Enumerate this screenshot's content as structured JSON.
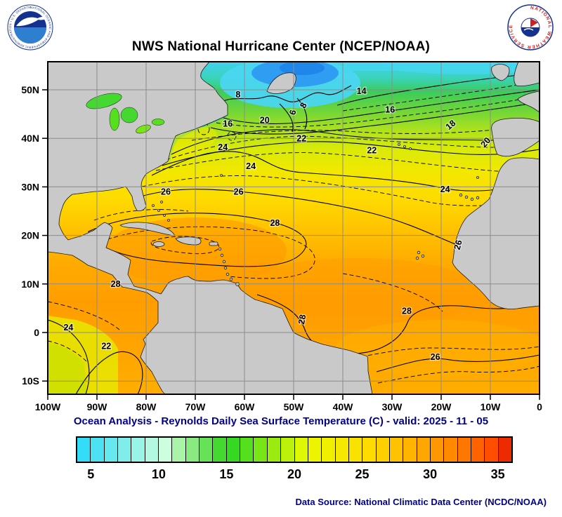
{
  "header": {
    "title": "NWS National Hurricane Center (NCEP/NOAA)",
    "noaa_logo": {
      "ring_text": "NATIONAL OCEANIC AND ATMOSPHERIC ADMINISTRATION • U.S. DEPARTMENT OF COMMERCE"
    },
    "nws_logo": {
      "ring_text": "NATIONAL WEATHER SERVICE"
    }
  },
  "footer": {
    "subtitle": "Ocean Analysis - Reynolds Daily Sea Surface Temperature (C) - valid: 2025 - 11 - 05",
    "data_source": "Data Source: National Climatic Data Center (NCDC/NOAA)"
  },
  "chart_data": {
    "type": "heatmap",
    "title": "NWS National Hurricane Center (NCEP/NOAA)",
    "subtitle": "Ocean Analysis - Reynolds Daily Sea Surface Temperature (C) - valid: 2025 - 11 - 05",
    "variable": "Reynolds Daily Sea Surface Temperature",
    "units": "C",
    "valid_date": "2025 - 11 - 05",
    "region": {
      "lon_west": -100,
      "lon_east": 0,
      "lat_south": -12.7,
      "lat_north": 55.8
    },
    "x_axis": {
      "ticks": [
        {
          "label": "100W",
          "lon": -100
        },
        {
          "label": "90W",
          "lon": -90
        },
        {
          "label": "80W",
          "lon": -80
        },
        {
          "label": "70W",
          "lon": -70
        },
        {
          "label": "60W",
          "lon": -60
        },
        {
          "label": "50W",
          "lon": -50
        },
        {
          "label": "40W",
          "lon": -40
        },
        {
          "label": "30W",
          "lon": -30
        },
        {
          "label": "20W",
          "lon": -20
        },
        {
          "label": "10W",
          "lon": -10
        },
        {
          "label": "0",
          "lon": 0
        }
      ]
    },
    "y_axis": {
      "ticks": [
        {
          "label": "50N",
          "lat": 50
        },
        {
          "label": "40N",
          "lat": 40
        },
        {
          "label": "30N",
          "lat": 30
        },
        {
          "label": "20N",
          "lat": 20
        },
        {
          "label": "10N",
          "lat": 10
        },
        {
          "label": "0",
          "lat": 0
        },
        {
          "label": "10S",
          "lat": -10
        }
      ]
    },
    "grid_lons": [
      -90,
      -80,
      -70,
      -60,
      -50,
      -40,
      -30,
      -20,
      -10
    ],
    "grid_lats": [
      50,
      40,
      30,
      20,
      10,
      0,
      -10
    ],
    "contour_interval_c": 1,
    "contour_labels_c": [
      {
        "v": "8",
        "lon": -61.3,
        "lat": 48.4,
        "rot": 0
      },
      {
        "v": "6",
        "lon": -49.6,
        "lat": 45.2,
        "rot": 75
      },
      {
        "v": "8",
        "lon": -47.5,
        "lat": 46.5,
        "rot": 60
      },
      {
        "v": "14",
        "lon": -36.2,
        "lat": 49.1,
        "rot": 0
      },
      {
        "v": "16",
        "lon": -63.4,
        "lat": 42.4,
        "rot": 0
      },
      {
        "v": "20",
        "lon": -55.9,
        "lat": 43.1,
        "rot": 0
      },
      {
        "v": "16",
        "lon": -30.4,
        "lat": 45.3,
        "rot": 0
      },
      {
        "v": "18",
        "lon": -17.7,
        "lat": 42.3,
        "rot": 40
      },
      {
        "v": "20",
        "lon": -10.5,
        "lat": 38.8,
        "rot": 50
      },
      {
        "v": "22",
        "lon": -48.4,
        "lat": 39.4,
        "rot": 0
      },
      {
        "v": "22",
        "lon": -34.1,
        "lat": 36.9,
        "rot": 0
      },
      {
        "v": "24",
        "lon": -64.4,
        "lat": 37.6,
        "rot": 0
      },
      {
        "v": "24",
        "lon": -58.7,
        "lat": 33.7,
        "rot": 0
      },
      {
        "v": "24",
        "lon": -19.2,
        "lat": 28.9,
        "rot": 0
      },
      {
        "v": "26",
        "lon": -76.0,
        "lat": 28.4,
        "rot": 0
      },
      {
        "v": "26",
        "lon": -61.2,
        "lat": 28.4,
        "rot": 0
      },
      {
        "v": "28",
        "lon": -53.8,
        "lat": 22.0,
        "rot": 0
      },
      {
        "v": "26",
        "lon": -16.0,
        "lat": 17.9,
        "rot": 75
      },
      {
        "v": "28",
        "lon": -86.2,
        "lat": 9.4,
        "rot": 0
      },
      {
        "v": "28",
        "lon": -47.7,
        "lat": 2.6,
        "rot": 80
      },
      {
        "v": "28",
        "lon": -27.0,
        "lat": 3.8,
        "rot": 0
      },
      {
        "v": "26",
        "lon": -21.2,
        "lat": -5.6,
        "rot": 0
      },
      {
        "v": "24",
        "lon": -95.8,
        "lat": 0.4,
        "rot": 0
      },
      {
        "v": "22",
        "lon": -88.1,
        "lat": -3.4,
        "rot": 0
      }
    ],
    "colorbar": {
      "min_c": 4,
      "max_c": 36,
      "tick_values": [
        5,
        10,
        15,
        20,
        25,
        30,
        35
      ],
      "cell_colors": [
        "#33dcf7",
        "#4de2f3",
        "#66e8ef",
        "#80edea",
        "#99f3e6",
        "#b3f9e2",
        "#ccffdd",
        "#aaf4aa",
        "#88ea80",
        "#66e158",
        "#44d830",
        "#35d922",
        "#55df1c",
        "#77e516",
        "#99eb10",
        "#bbf10a",
        "#ddf705",
        "#eef400",
        "#f2ee00",
        "#f6e800",
        "#fae200",
        "#fedc00",
        "#ffd000",
        "#ffc200",
        "#ffb400",
        "#ffa600",
        "#ff9800",
        "#ff8a00",
        "#ff7600",
        "#ff6200",
        "#ff4e00",
        "#ee2b00"
      ]
    },
    "land_color": "#c9c9c9",
    "accent_text_color": "#00008b"
  }
}
